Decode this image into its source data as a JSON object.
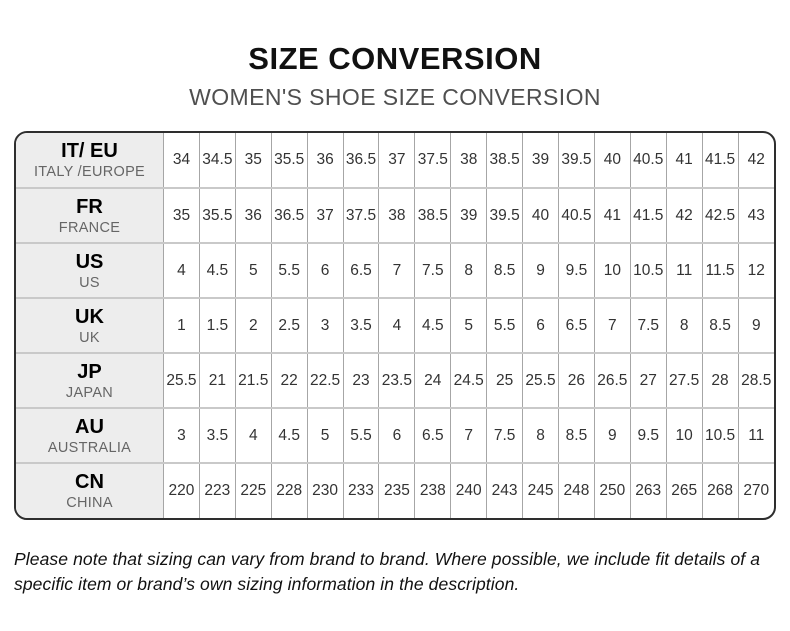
{
  "header": {
    "title": "SIZE CONVERSION",
    "subtitle": "WOMEN'S SHOE SIZE CONVERSION"
  },
  "table": {
    "rows": [
      {
        "code": "IT/ EU",
        "region": "ITALY /EUROPE",
        "sizes": [
          "34",
          "34.5",
          "35",
          "35.5",
          "36",
          "36.5",
          "37",
          "37.5",
          "38",
          "38.5",
          "39",
          "39.5",
          "40",
          "40.5",
          "41",
          "41.5",
          "42"
        ]
      },
      {
        "code": "FR",
        "region": "FRANCE",
        "sizes": [
          "35",
          "35.5",
          "36",
          "36.5",
          "37",
          "37.5",
          "38",
          "38.5",
          "39",
          "39.5",
          "40",
          "40.5",
          "41",
          "41.5",
          "42",
          "42.5",
          "43"
        ]
      },
      {
        "code": "US",
        "region": "US",
        "sizes": [
          "4",
          "4.5",
          "5",
          "5.5",
          "6",
          "6.5",
          "7",
          "7.5",
          "8",
          "8.5",
          "9",
          "9.5",
          "10",
          "10.5",
          "11",
          "11.5",
          "12"
        ]
      },
      {
        "code": "UK",
        "region": "UK",
        "sizes": [
          "1",
          "1.5",
          "2",
          "2.5",
          "3",
          "3.5",
          "4",
          "4.5",
          "5",
          "5.5",
          "6",
          "6.5",
          "7",
          "7.5",
          "8",
          "8.5",
          "9"
        ]
      },
      {
        "code": "JP",
        "region": "JAPAN",
        "sizes": [
          "25.5",
          "21",
          "21.5",
          "22",
          "22.5",
          "23",
          "23.5",
          "24",
          "24.5",
          "25",
          "25.5",
          "26",
          "26.5",
          "27",
          "27.5",
          "28",
          "28.5"
        ]
      },
      {
        "code": "AU",
        "region": "AUSTRALIA",
        "sizes": [
          "3",
          "3.5",
          "4",
          "4.5",
          "5",
          "5.5",
          "6",
          "6.5",
          "7",
          "7.5",
          "8",
          "8.5",
          "9",
          "9.5",
          "10",
          "10.5",
          "11"
        ]
      },
      {
        "code": "CN",
        "region": "CHINA",
        "sizes": [
          "220",
          "223",
          "225",
          "228",
          "230",
          "233",
          "235",
          "238",
          "240",
          "243",
          "245",
          "248",
          "250",
          "263",
          "265",
          "268",
          "270"
        ]
      }
    ]
  },
  "footer": {
    "note": "Please note that sizing can vary from brand to brand. Where possible, we include fit details of a specific item or brand’s own sizing information in the description."
  },
  "colors": {
    "title_text": "#111111",
    "subtitle_text": "#4f4f4f",
    "outer_border": "#2e2e2e",
    "row_divider": "#c9c9c9",
    "column_divider": "#a6a6a6",
    "header_cell_bg": "#ededed",
    "cell_text": "#333333",
    "region_text": "#666666"
  }
}
